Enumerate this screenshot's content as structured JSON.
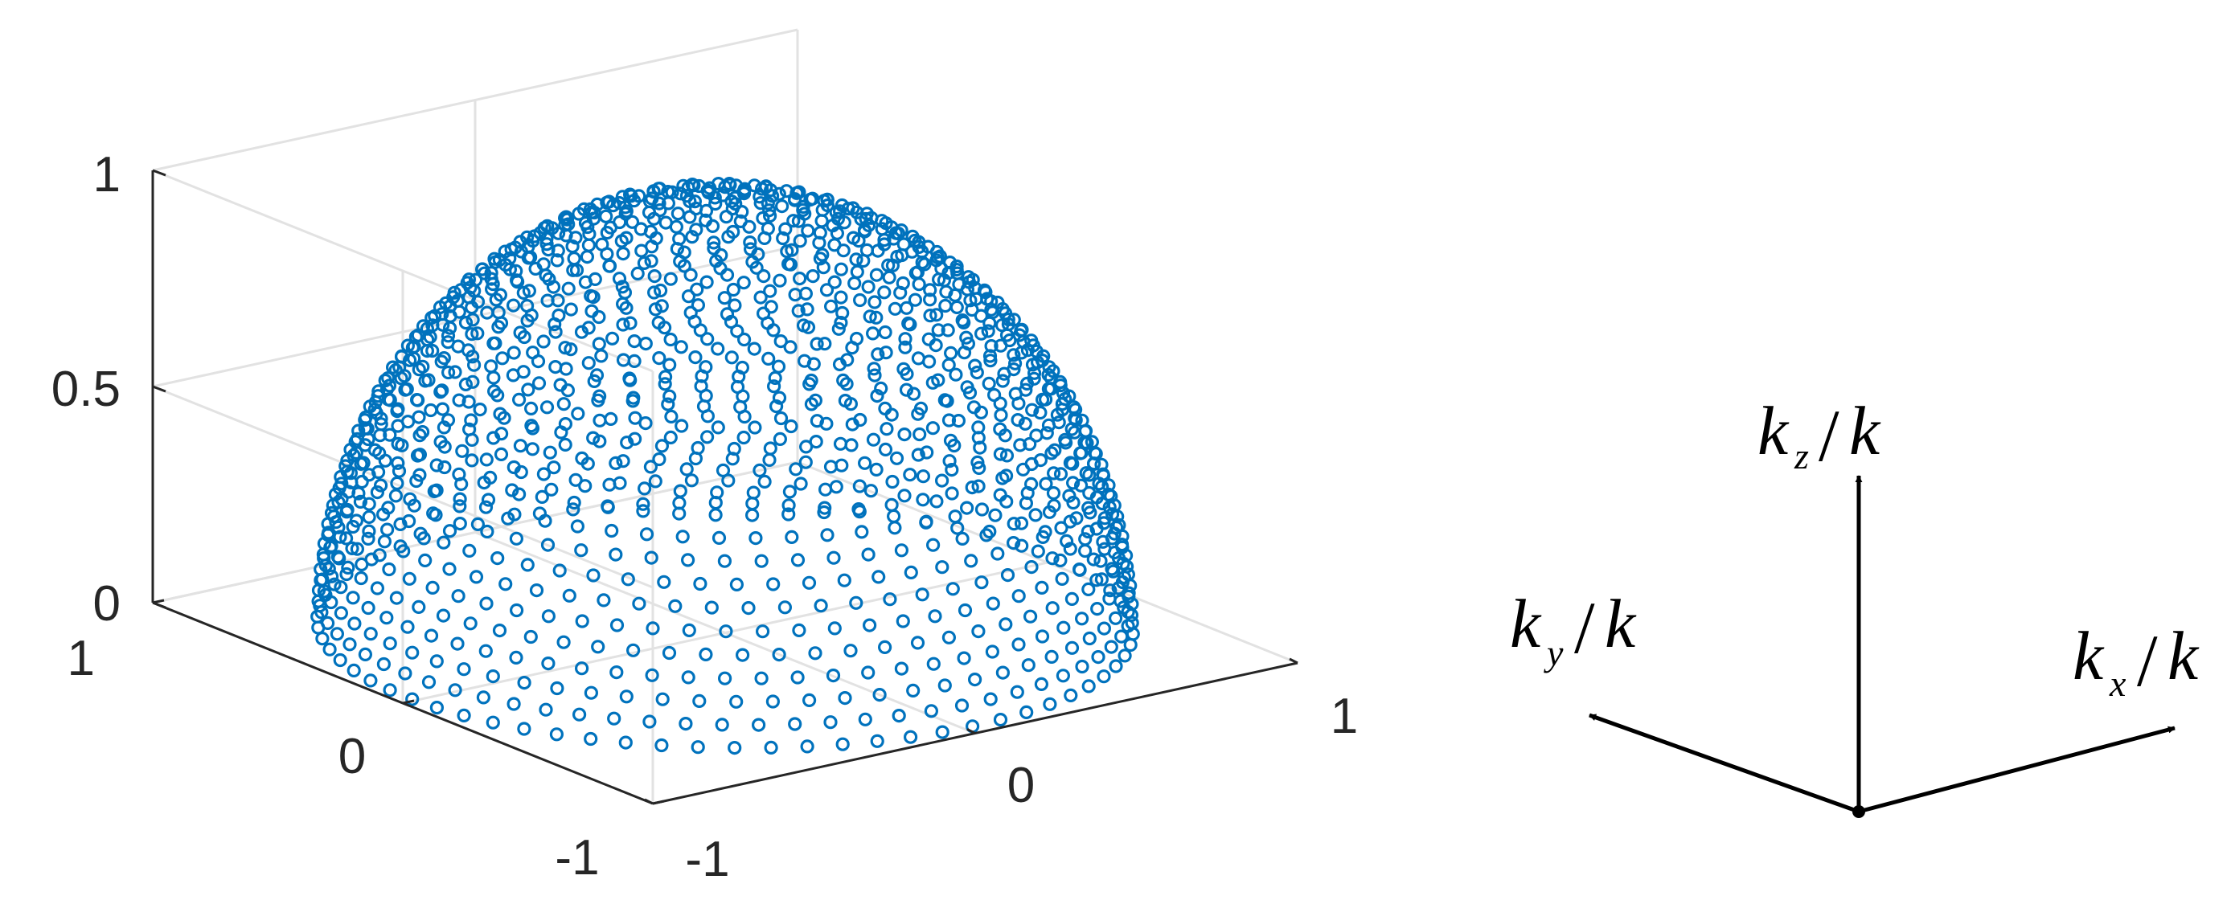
{
  "chart_data": {
    "type": "scatter",
    "projection": "3d",
    "description_type": "hemisphere point cloud",
    "marker": "circle-open",
    "color": "#0072bd",
    "grid": true,
    "xlim": [
      -1,
      1
    ],
    "ylim": [
      -1,
      1
    ],
    "zlim": [
      0,
      1
    ],
    "x_ticks": [
      "-1",
      "0",
      "1"
    ],
    "y_ticks": [
      "-1",
      "0",
      "1"
    ],
    "z_ticks": [
      "0",
      "0.5",
      "1"
    ],
    "series": [
      {
        "x_expr": "cos(phi)*sin(theta)",
        "y_expr": "sin(phi)*sin(theta)",
        "z_expr": "cos(theta)",
        "theta_range_deg": [
          0,
          90
        ],
        "phi_range_deg": [
          0,
          360
        ]
      }
    ]
  },
  "axes_diagram": {
    "x_label": {
      "main": "k",
      "sub": "x",
      "den": "k"
    },
    "y_label": {
      "main": "k",
      "sub": "y",
      "den": "k"
    },
    "z_label": {
      "main": "k",
      "sub": "z",
      "den": "k"
    }
  }
}
